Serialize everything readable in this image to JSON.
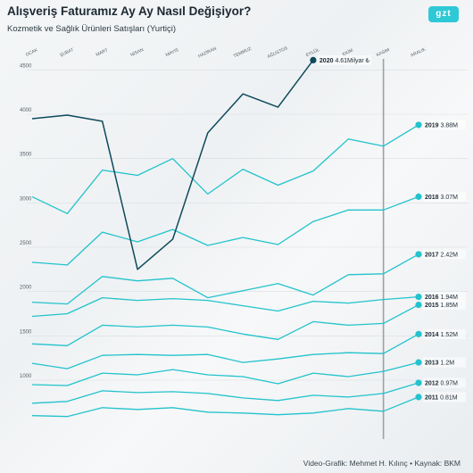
{
  "header": {
    "title": "Alışveriş Faturamız Ay Ay Nasıl Değişiyor?",
    "subtitle": "Kozmetik ve Sağlık Ürünleri Satışları (Yurtiçi)",
    "logo": "gzt"
  },
  "footer": {
    "credit": "Video-Grafik: Mehmet H. Kılınç • Kaynak: BKM"
  },
  "colors": {
    "series": "#22c3cc",
    "highlight": "#0e4a5c",
    "marker": "#9aa2a6"
  },
  "chart_data": {
    "type": "line",
    "title": "Alışveriş Faturamız Ay Ay Nasıl Değişiyor?",
    "subtitle": "Kozmetik ve Sağlık Ürünleri Satışları (Yurtiçi)",
    "categories": [
      "OCAK",
      "ŞUBAT",
      "MART",
      "NİSAN",
      "MAYIS",
      "HAZİRAN",
      "TEMMUZ",
      "AĞUSTOS",
      "EYLÜL",
      "EKİM",
      "KASIM",
      "ARALIK"
    ],
    "y_ticks": [
      1000,
      1500,
      2000,
      2500,
      3000,
      3500,
      4000,
      4500
    ],
    "ylim": [
      600,
      4700
    ],
    "grid": true,
    "vertical_marker": "KASIM",
    "series": [
      {
        "name": "2011",
        "end_label": "0.81M",
        "values": [
          600,
          590,
          690,
          670,
          690,
          640,
          630,
          610,
          630,
          680,
          650,
          810
        ]
      },
      {
        "name": "2012",
        "end_label": "0.97M",
        "values": [
          740,
          760,
          880,
          860,
          870,
          850,
          800,
          770,
          830,
          810,
          850,
          970
        ]
      },
      {
        "name": "2013",
        "end_label": "1.2M",
        "values": [
          950,
          940,
          1080,
          1060,
          1120,
          1060,
          1040,
          960,
          1080,
          1040,
          1100,
          1200
        ]
      },
      {
        "name": "2014",
        "end_label": "1.52M",
        "values": [
          1190,
          1130,
          1280,
          1290,
          1280,
          1290,
          1200,
          1240,
          1290,
          1310,
          1300,
          1520
        ]
      },
      {
        "name": "2015",
        "end_label": "1.85M",
        "values": [
          1410,
          1390,
          1620,
          1600,
          1620,
          1600,
          1520,
          1460,
          1660,
          1620,
          1640,
          1850
        ]
      },
      {
        "name": "2016",
        "end_label": "1.94M",
        "values": [
          1720,
          1750,
          1930,
          1900,
          1920,
          1900,
          1840,
          1780,
          1890,
          1870,
          1910,
          1940
        ]
      },
      {
        "name": "2017",
        "end_label": "2.42M",
        "values": [
          1880,
          1860,
          2170,
          2120,
          2150,
          1930,
          2010,
          2090,
          1960,
          2190,
          2200,
          2420
        ]
      },
      {
        "name": "2018",
        "end_label": "3.07M",
        "values": [
          2330,
          2300,
          2670,
          2560,
          2700,
          2520,
          2610,
          2530,
          2790,
          2920,
          2920,
          3070
        ]
      },
      {
        "name": "2019",
        "end_label": "3.88M",
        "values": [
          3070,
          2880,
          3370,
          3310,
          3500,
          3100,
          3380,
          3200,
          3360,
          3720,
          3640,
          3880
        ]
      },
      {
        "name": "2020",
        "end_label": "4.61Milyar ₺",
        "highlight": true,
        "values": [
          3950,
          3990,
          3920,
          2250,
          2590,
          3790,
          4230,
          4080,
          4610,
          null,
          null,
          null
        ]
      }
    ]
  }
}
